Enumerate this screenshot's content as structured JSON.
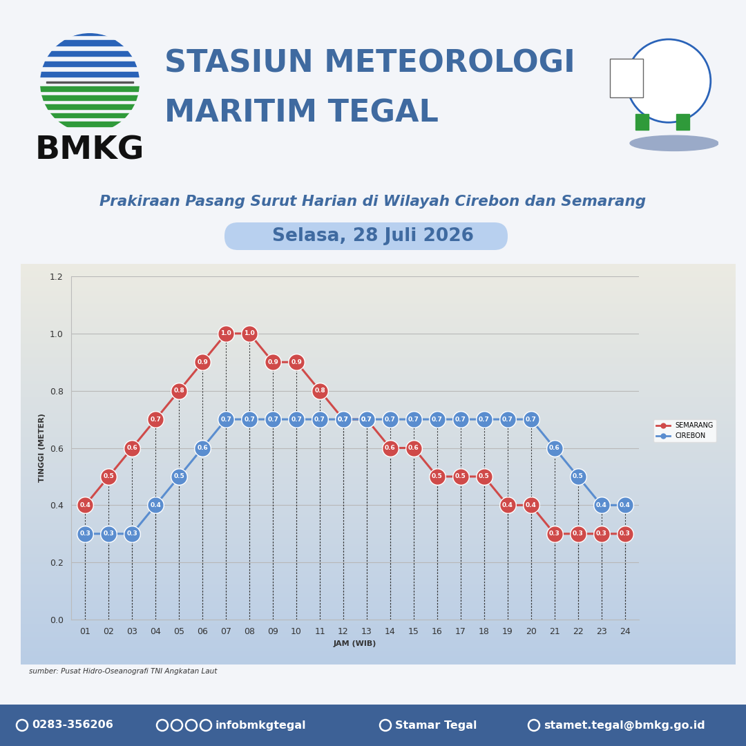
{
  "header": {
    "logo_text": "BMKG",
    "title_lines": [
      "STASIUN METEOROLOGI",
      "MARITIM TEGAL"
    ]
  },
  "chart_data": {
    "type": "line",
    "title": "Prakiraan Pasang Surut Harian di Wilayah Cirebon dan Semarang",
    "subtitle": "Selasa, 28 Juli 2026",
    "x_label": "JAM (WIB)",
    "y_label": "TINGGI (METER)",
    "categories": [
      "01",
      "02",
      "03",
      "04",
      "05",
      "06",
      "07",
      "08",
      "09",
      "10",
      "11",
      "12",
      "13",
      "14",
      "15",
      "16",
      "17",
      "18",
      "19",
      "20",
      "21",
      "22",
      "23",
      "24"
    ],
    "series": [
      {
        "name": "SEMARANG",
        "color": "#cf4a49",
        "marker": "o",
        "values": [
          0.4,
          0.5,
          0.6,
          0.7,
          0.8,
          0.9,
          1.0,
          1.0,
          0.9,
          0.9,
          0.8,
          0.7,
          0.7,
          0.6,
          0.6,
          0.5,
          0.5,
          0.5,
          0.4,
          0.4,
          0.3,
          0.3,
          0.3,
          0.3
        ]
      },
      {
        "name": "CIREBON",
        "color": "#5a8dcf",
        "marker": "o",
        "values": [
          0.3,
          0.3,
          0.3,
          0.4,
          0.5,
          0.6,
          0.7,
          0.7,
          0.7,
          0.7,
          0.7,
          0.7,
          0.7,
          0.7,
          0.7,
          0.7,
          0.7,
          0.7,
          0.7,
          0.7,
          0.6,
          0.5,
          0.4,
          0.4
        ]
      }
    ],
    "ylim": [
      0.0,
      1.2
    ],
    "yticks": [
      {
        "value": 0.0,
        "label": "0.0"
      },
      0.2,
      0.4,
      0.6,
      0.8,
      {
        "value": 1.0,
        "label": "1.0"
      },
      1.2
    ],
    "grid": true,
    "legend": "center left",
    "data_labels": true,
    "annotations": [
      "sumber: Pusat Hidro-Oseanografi TNI Angkatan Laut"
    ]
  },
  "footer": {
    "phone": "0283-356206",
    "social": "infobmkgtegal",
    "youtube": "Stamar Tegal",
    "email": "stamet.tegal@bmkg.go.id"
  }
}
